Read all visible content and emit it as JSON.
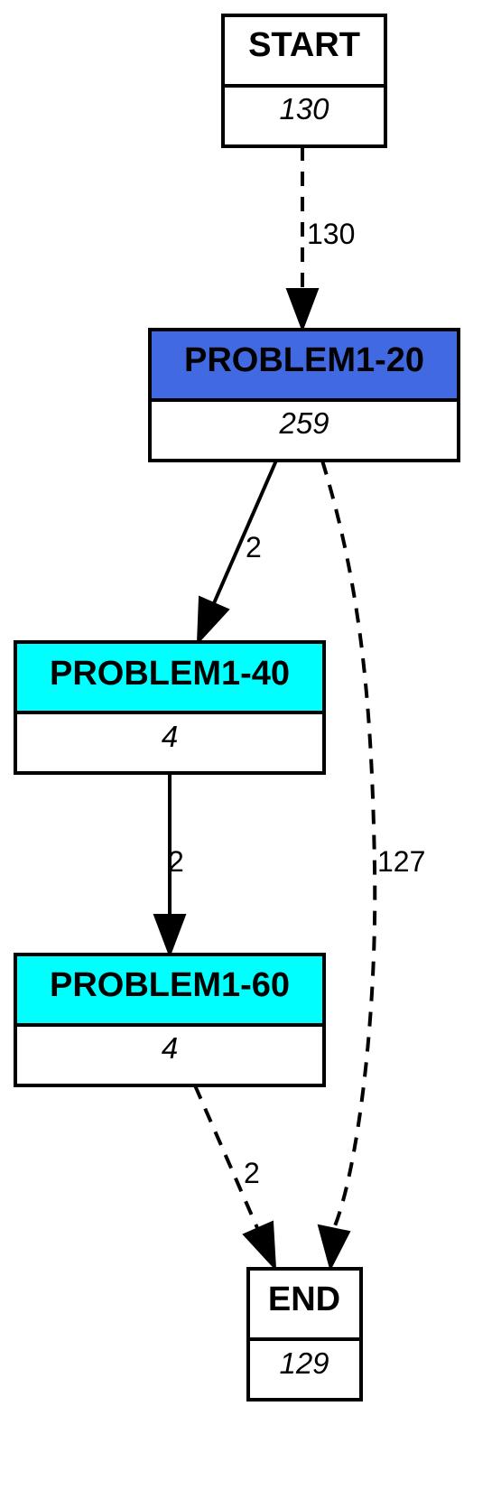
{
  "nodes": {
    "start": {
      "title": "START",
      "count": "130",
      "header_color": "#ffffff"
    },
    "p20": {
      "title": "PROBLEM1-20",
      "count": "259",
      "header_color": "#4169e1"
    },
    "p40": {
      "title": "PROBLEM1-40",
      "count": "4",
      "header_color": "#00ffff"
    },
    "p60": {
      "title": "PROBLEM1-60",
      "count": "4",
      "header_color": "#00ffff"
    },
    "end": {
      "title": "END",
      "count": "129",
      "header_color": "#ffffff"
    }
  },
  "edges": {
    "start_p20": {
      "label": "130",
      "style": "dashed"
    },
    "p20_p40": {
      "label": "2",
      "style": "solid"
    },
    "p20_end": {
      "label": "127",
      "style": "dashed"
    },
    "p40_p60": {
      "label": "2",
      "style": "solid"
    },
    "p60_end": {
      "label": "2",
      "style": "dashed"
    }
  }
}
